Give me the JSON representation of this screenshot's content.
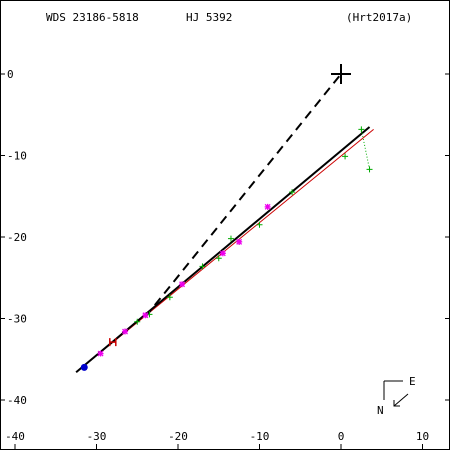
{
  "header": {
    "wds_id": "WDS 23186-5818",
    "discoverer": "HJ 5392",
    "reference": "(Hrt2017a)"
  },
  "compass": {
    "east_label": "E",
    "north_label": "N"
  },
  "colors": {
    "axes": "#000000",
    "orbit_fit": "#000000",
    "reference_fit": "#cc0000",
    "plus_obs": "#00aa00",
    "star_obs": "#ee00ee",
    "first_obs": "#0000cc",
    "recent_obs": "#cc0000",
    "residual": "#00aa00"
  },
  "chart_data": {
    "type": "scatter",
    "title": "",
    "xlabel": "",
    "ylabel": "",
    "xlim": [
      -40,
      13
    ],
    "ylim": [
      -44,
      7.5
    ],
    "x_ticks": [
      -40,
      -30,
      -20,
      -10,
      0,
      10
    ],
    "y_ticks": [
      0,
      -10,
      -20,
      -30,
      -40
    ],
    "primary_star": {
      "x": 0,
      "y": 0
    },
    "dashed_line": [
      [
        -24,
        -29.8
      ],
      [
        0,
        0
      ]
    ],
    "linear_fit": [
      [
        -32.5,
        -36.6
      ],
      [
        3.5,
        -6.5
      ]
    ],
    "reference_fit": [
      [
        -32,
        -36.2
      ],
      [
        4,
        -6.8
      ]
    ],
    "series": [
      {
        "marker": "plus",
        "points": [
          [
            -25,
            -30.4
          ],
          [
            -23.5,
            -29.5
          ],
          [
            -21,
            -27.4
          ],
          [
            -17,
            -23.6
          ],
          [
            -15,
            -22.6
          ],
          [
            -13.5,
            -20.2
          ],
          [
            -12.5,
            -20.6
          ],
          [
            -10,
            -18.5
          ],
          [
            -6,
            -14.5
          ],
          [
            0.5,
            -10.1
          ],
          [
            2.5,
            -6.8
          ],
          [
            3.5,
            -11.7
          ]
        ]
      },
      {
        "marker": "star",
        "points": [
          [
            -29.5,
            -34.3
          ],
          [
            -26.5,
            -31.6
          ],
          [
            -24,
            -29.6
          ],
          [
            -19.5,
            -25.8
          ],
          [
            -14.5,
            -22.0
          ],
          [
            -12.5,
            -20.6
          ],
          [
            -9,
            -16.3
          ]
        ]
      },
      {
        "marker": "first",
        "points": [
          [
            -31.5,
            -36.0
          ]
        ]
      },
      {
        "marker": "recent",
        "points": [
          [
            -28,
            -32.9
          ]
        ]
      }
    ],
    "residuals": [
      [
        [
          3.5,
          -11.7
        ],
        [
          2.5,
          -6.8
        ]
      ]
    ]
  }
}
